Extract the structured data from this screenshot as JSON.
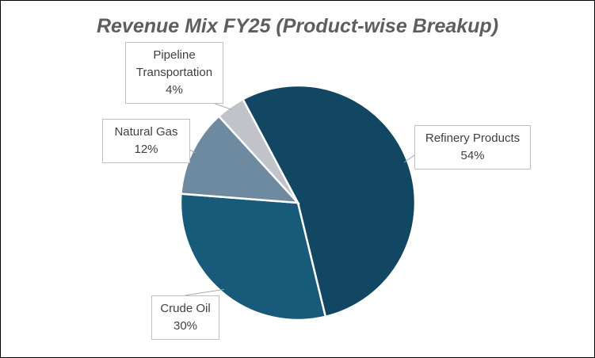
{
  "chart_data": {
    "type": "pie",
    "title": "Revenue Mix FY25 (Product-wise Breakup)",
    "categories": [
      "Refinery Products",
      "Crude Oil",
      "Natural Gas",
      "Pipeline Transportation"
    ],
    "values": [
      54,
      30,
      12,
      4
    ],
    "value_labels": [
      "54%",
      "30%",
      "12%",
      "4%"
    ],
    "colors": [
      "#124763",
      "#175a7a",
      "#6e8aa0",
      "#c0c4ca"
    ]
  }
}
